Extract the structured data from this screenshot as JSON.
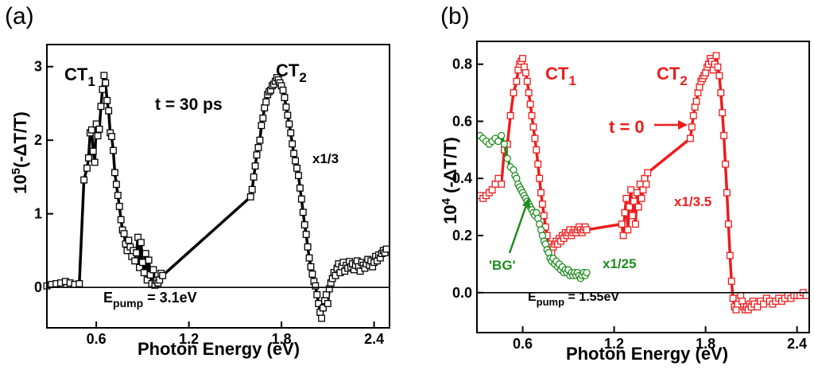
{
  "chart_data": [
    {
      "type": "scatter",
      "panel_label": "(a)",
      "xlabel": "Photon Energy (eV)",
      "ylabel": "10",
      "ylabel_sup": "5",
      "ylabel_rest": "(-ΔT/T)",
      "xlim": [
        0.28,
        2.5
      ],
      "ylim": [
        -0.55,
        3.3
      ],
      "xticks": [
        0.6,
        1.2,
        1.8,
        2.4
      ],
      "yticks": [
        0,
        1,
        2,
        3
      ],
      "xtick_labels": [
        "0.6",
        "1.2",
        "1.8",
        "2.4"
      ],
      "ytick_labels": [
        "0",
        "1",
        "2",
        "3"
      ],
      "zero_line": true,
      "annotations": {
        "ct1": "CT",
        "ct1_sub": "1",
        "ct2": "CT",
        "ct2_sub": "2",
        "time": "t = 30 ps",
        "scale": "x1/3",
        "pump": "E",
        "pump_sub": "pump",
        "pump_rest": " = 3.1eV"
      },
      "series": [
        {
          "color": "#000000",
          "marker": "square",
          "x": [
            0.28,
            0.31,
            0.34,
            0.37,
            0.4,
            0.43,
            0.46,
            0.49,
            0.52,
            0.54,
            0.55,
            0.56,
            0.57,
            0.58,
            0.59,
            0.6,
            0.61,
            0.62,
            0.63,
            0.64,
            0.65,
            0.66,
            0.67,
            0.68,
            0.69,
            0.7,
            0.71,
            0.72,
            0.73,
            0.74,
            0.75,
            0.76,
            0.77,
            0.78,
            0.79,
            0.8,
            0.81,
            0.82,
            0.83,
            0.84,
            0.85,
            0.86,
            0.87,
            0.88,
            0.89,
            0.9,
            0.91,
            0.92,
            0.93,
            0.94,
            0.95,
            0.96,
            0.97,
            0.98,
            0.99,
            1.0,
            1.01,
            1.02,
            1.03,
            1.6,
            1.61,
            1.62,
            1.63,
            1.64,
            1.65,
            1.66,
            1.67,
            1.68,
            1.69,
            1.7,
            1.71,
            1.72,
            1.73,
            1.74,
            1.75,
            1.76,
            1.77,
            1.78,
            1.79,
            1.8,
            1.81,
            1.82,
            1.83,
            1.84,
            1.85,
            1.86,
            1.87,
            1.88,
            1.89,
            1.9,
            1.91,
            1.92,
            1.93,
            1.94,
            1.95,
            1.96,
            1.97,
            1.98,
            1.99,
            2.0,
            2.01,
            2.02,
            2.03,
            2.04,
            2.05,
            2.06,
            2.07,
            2.08,
            2.09,
            2.1,
            2.11,
            2.12,
            2.13,
            2.14,
            2.15,
            2.16,
            2.17,
            2.18,
            2.19,
            2.2,
            2.21,
            2.22,
            2.23,
            2.24,
            2.25,
            2.26,
            2.27,
            2.28,
            2.29,
            2.3,
            2.31,
            2.32,
            2.33,
            2.34,
            2.35,
            2.36,
            2.37,
            2.38,
            2.39,
            2.4,
            2.41,
            2.42,
            2.43,
            2.44,
            2.45,
            2.46,
            2.47,
            2.48
          ],
          "y": [
            0.02,
            0.04,
            0.05,
            0.06,
            0.08,
            0.06,
            0.04,
            0.05,
            1.46,
            1.62,
            1.76,
            2.1,
            2.14,
            1.85,
            1.7,
            2.22,
            2.06,
            2.15,
            2.46,
            2.69,
            2.88,
            2.78,
            2.54,
            2.4,
            2.1,
            2.05,
            1.86,
            1.56,
            1.4,
            1.25,
            1.1,
            0.92,
            0.78,
            0.73,
            0.59,
            0.5,
            0.64,
            0.55,
            0.42,
            0.5,
            0.36,
            0.47,
            0.68,
            0.27,
            0.61,
            0.34,
            0.2,
            0.46,
            0.1,
            0.37,
            0.17,
            0.05,
            0.24,
            0.03,
            0.09,
            0.06,
            0.1,
            0.19,
            0.16,
            1.23,
            1.33,
            1.5,
            1.65,
            1.8,
            1.9,
            2.0,
            2.2,
            2.3,
            2.44,
            2.52,
            2.62,
            2.66,
            2.68,
            2.74,
            2.76,
            2.8,
            2.85,
            2.82,
            2.78,
            2.74,
            2.68,
            2.58,
            2.45,
            2.34,
            2.22,
            2.1,
            1.95,
            1.82,
            1.72,
            1.62,
            1.52,
            1.35,
            1.2,
            1.02,
            0.85,
            0.72,
            0.55,
            0.4,
            0.28,
            0.18,
            0.08,
            0.02,
            -0.1,
            -0.22,
            -0.34,
            -0.42,
            -0.28,
            -0.18,
            -0.1,
            -0.22,
            -0.02,
            0.06,
            0.12,
            0.2,
            0.16,
            0.26,
            0.32,
            0.2,
            0.28,
            0.34,
            0.22,
            0.3,
            0.26,
            0.35,
            0.28,
            0.32,
            0.24,
            0.3,
            0.36,
            0.28,
            0.22,
            0.34,
            0.3,
            0.26,
            0.32,
            0.38,
            0.3,
            0.36,
            0.28,
            0.34,
            0.42,
            0.36,
            0.44,
            0.4,
            0.46,
            0.5,
            0.47,
            0.52
          ]
        }
      ]
    },
    {
      "type": "scatter",
      "panel_label": "(b)",
      "xlabel": "Photon Energy (eV)",
      "ylabel": "10",
      "ylabel_sup": "4",
      "ylabel_rest": " (-ΔT/T)",
      "xlim": [
        0.3,
        2.48
      ],
      "ylim": [
        -0.14,
        0.88
      ],
      "xticks": [
        0.6,
        1.2,
        1.8,
        2.4
      ],
      "yticks": [
        0.0,
        0.2,
        0.4,
        0.6,
        0.8
      ],
      "xtick_labels": [
        "0.6",
        "1.2",
        "1.8",
        "2.4"
      ],
      "ytick_labels": [
        "0.0",
        "0.2",
        "0.4",
        "0.6",
        "0.8"
      ],
      "zero_line": true,
      "annotations": {
        "ct1": "CT",
        "ct1_sub": "1",
        "ct2": "CT",
        "ct2_sub": "2",
        "time": "t = 0",
        "scale_red": "x1/3.5",
        "bg": "'BG'",
        "scale_green": "x1/25",
        "pump": "E",
        "pump_sub": "pump",
        "pump_rest": " = 1.55eV"
      },
      "series": [
        {
          "color": "#ee1c1c",
          "marker": "square",
          "x": [
            0.32,
            0.34,
            0.36,
            0.38,
            0.4,
            0.42,
            0.44,
            0.46,
            0.48,
            0.5,
            0.52,
            0.54,
            0.56,
            0.57,
            0.58,
            0.59,
            0.6,
            0.61,
            0.62,
            0.63,
            0.64,
            0.65,
            0.66,
            0.67,
            0.68,
            0.69,
            0.7,
            0.71,
            0.72,
            0.73,
            0.74,
            0.75,
            0.76,
            0.77,
            0.78,
            0.79,
            0.8,
            0.81,
            0.82,
            0.83,
            0.84,
            0.85,
            0.86,
            0.87,
            0.88,
            0.89,
            0.9,
            0.91,
            0.92,
            0.93,
            0.94,
            0.95,
            0.96,
            0.97,
            0.98,
            0.99,
            1.0,
            1.01,
            1.02,
            1.25,
            1.26,
            1.27,
            1.28,
            1.29,
            1.3,
            1.31,
            1.32,
            1.33,
            1.34,
            1.35,
            1.36,
            1.37,
            1.38,
            1.39,
            1.4,
            1.41,
            1.42,
            1.7,
            1.71,
            1.72,
            1.73,
            1.74,
            1.75,
            1.76,
            1.77,
            1.78,
            1.79,
            1.8,
            1.81,
            1.82,
            1.83,
            1.84,
            1.85,
            1.86,
            1.87,
            1.88,
            1.89,
            1.9,
            1.91,
            1.92,
            1.93,
            1.94,
            1.95,
            1.96,
            1.97,
            1.98,
            1.99,
            2.0,
            2.01,
            2.02,
            2.03,
            2.04,
            2.05,
            2.06,
            2.07,
            2.08,
            2.09,
            2.1,
            2.11,
            2.12,
            2.14,
            2.16,
            2.18,
            2.2,
            2.22,
            2.24,
            2.26,
            2.28,
            2.3,
            2.32,
            2.34,
            2.36,
            2.38,
            2.4,
            2.42,
            2.44,
            2.46
          ],
          "y": [
            0.34,
            0.33,
            0.34,
            0.35,
            0.36,
            0.38,
            0.4,
            0.38,
            0.5,
            0.52,
            0.62,
            0.7,
            0.74,
            0.78,
            0.8,
            0.81,
            0.82,
            0.79,
            0.77,
            0.74,
            0.7,
            0.66,
            0.62,
            0.58,
            0.54,
            0.5,
            0.45,
            0.4,
            0.35,
            0.31,
            0.27,
            0.23,
            0.2,
            0.17,
            0.15,
            0.14,
            0.16,
            0.17,
            0.18,
            0.17,
            0.19,
            0.18,
            0.2,
            0.19,
            0.21,
            0.2,
            0.21,
            0.22,
            0.2,
            0.21,
            0.22,
            0.21,
            0.22,
            0.23,
            0.22,
            0.21,
            0.22,
            0.23,
            0.22,
            0.24,
            0.2,
            0.28,
            0.33,
            0.22,
            0.3,
            0.36,
            0.27,
            0.32,
            0.24,
            0.35,
            0.3,
            0.38,
            0.33,
            0.36,
            0.4,
            0.38,
            0.42,
            0.54,
            0.58,
            0.62,
            0.65,
            0.67,
            0.7,
            0.72,
            0.74,
            0.75,
            0.76,
            0.77,
            0.79,
            0.8,
            0.82,
            0.81,
            0.78,
            0.8,
            0.83,
            0.79,
            0.76,
            0.7,
            0.63,
            0.55,
            0.45,
            0.35,
            0.24,
            0.13,
            0.04,
            -0.02,
            -0.05,
            -0.06,
            -0.04,
            -0.02,
            -0.01,
            -0.03,
            -0.05,
            -0.06,
            -0.05,
            -0.06,
            -0.04,
            -0.05,
            -0.03,
            -0.04,
            -0.05,
            -0.03,
            -0.04,
            -0.02,
            -0.03,
            -0.04,
            -0.03,
            -0.02,
            -0.03,
            -0.02,
            -0.01,
            -0.02,
            -0.01,
            -0.01,
            -0.01,
            0.0,
            -0.01
          ]
        },
        {
          "color": "#1e8c1e",
          "marker": "circle",
          "x": [
            0.32,
            0.34,
            0.36,
            0.38,
            0.4,
            0.42,
            0.44,
            0.46,
            0.48,
            0.5,
            0.52,
            0.54,
            0.55,
            0.56,
            0.57,
            0.58,
            0.59,
            0.6,
            0.61,
            0.62,
            0.63,
            0.64,
            0.65,
            0.66,
            0.67,
            0.68,
            0.69,
            0.7,
            0.71,
            0.72,
            0.73,
            0.74,
            0.75,
            0.76,
            0.77,
            0.78,
            0.79,
            0.8,
            0.81,
            0.82,
            0.83,
            0.84,
            0.85,
            0.86,
            0.87,
            0.88,
            0.89,
            0.9,
            0.91,
            0.92,
            0.93,
            0.94,
            0.95,
            0.96,
            0.97,
            0.98,
            0.99,
            1.0,
            1.01,
            1.02
          ],
          "y": [
            0.55,
            0.54,
            0.53,
            0.52,
            0.53,
            0.54,
            0.53,
            0.55,
            0.52,
            0.47,
            0.44,
            0.43,
            0.41,
            0.4,
            0.38,
            0.37,
            0.36,
            0.35,
            0.34,
            0.33,
            0.32,
            0.31,
            0.3,
            0.29,
            0.28,
            0.27,
            0.28,
            0.26,
            0.24,
            0.22,
            0.2,
            0.18,
            0.17,
            0.15,
            0.14,
            0.12,
            0.11,
            0.12,
            0.1,
            0.11,
            0.09,
            0.1,
            0.08,
            0.09,
            0.07,
            0.08,
            0.07,
            0.08,
            0.06,
            0.07,
            0.06,
            0.07,
            0.06,
            0.07,
            0.06,
            0.05,
            0.06,
            0.07,
            0.06,
            0.07
          ]
        }
      ]
    }
  ]
}
